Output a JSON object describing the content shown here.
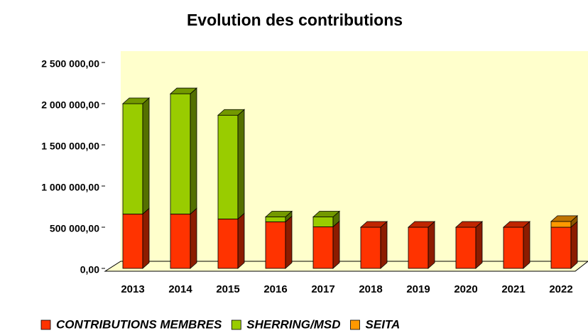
{
  "chart_data": {
    "type": "bar",
    "stacked": true,
    "title": "Evolution des contributions",
    "categories": [
      "2013",
      "2014",
      "2015",
      "2016",
      "2017",
      "2018",
      "2019",
      "2020",
      "2021",
      "2022"
    ],
    "series": [
      {
        "name": "CONTRIBUTIONS MEMBRES",
        "color": "#ff3300",
        "values": [
          660000,
          660000,
          600000,
          565000,
          505000,
          500000,
          500000,
          500000,
          500000,
          500000
        ]
      },
      {
        "name": "SHERRING/MSD",
        "color": "#99cc00",
        "values": [
          1340000,
          1460000,
          1260000,
          60000,
          120000,
          0,
          0,
          0,
          0,
          0
        ]
      },
      {
        "name": "SEITA",
        "color": "#ff9900",
        "values": [
          0,
          0,
          0,
          0,
          0,
          0,
          0,
          0,
          0,
          70000
        ]
      }
    ],
    "ylim": [
      0,
      2500000
    ],
    "yticks": [
      {
        "value": 0,
        "label": "0,00"
      },
      {
        "value": 500000,
        "label": "500 000,00"
      },
      {
        "value": 1000000,
        "label": "1 000 000,00"
      },
      {
        "value": 1500000,
        "label": "1 500 000,00"
      },
      {
        "value": 2000000,
        "label": "2 000 000,00"
      },
      {
        "value": 2500000,
        "label": "2 500 000,00"
      }
    ],
    "legend": "bottom"
  }
}
